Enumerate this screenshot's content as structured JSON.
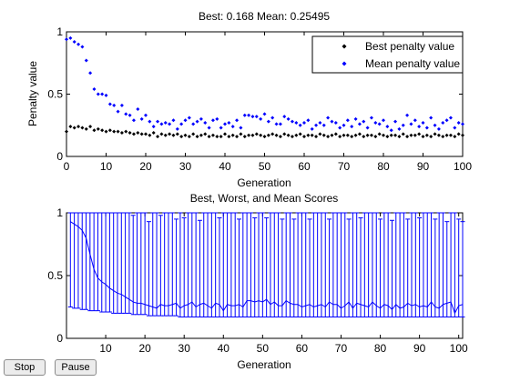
{
  "controls": {
    "stop_label": "Stop",
    "pause_label": "Pause"
  },
  "colors": {
    "best": "#000000",
    "mean": "#0000ff",
    "scores": "#0000ff"
  },
  "chart_data": [
    {
      "type": "scatter",
      "title": "Best: 0.168 Mean: 0.25495",
      "xlabel": "Generation",
      "ylabel": "Penalty value",
      "xlim": [
        0,
        100
      ],
      "ylim": [
        0,
        1
      ],
      "xticks": [
        "0",
        "10",
        "20",
        "30",
        "40",
        "50",
        "60",
        "70",
        "80",
        "90",
        "100"
      ],
      "yticks": [
        "0",
        "0.5",
        "1"
      ],
      "legend_position": "top-right",
      "x": [
        0,
        1,
        2,
        3,
        4,
        5,
        6,
        7,
        8,
        9,
        10,
        11,
        12,
        13,
        14,
        15,
        16,
        17,
        18,
        19,
        20,
        21,
        22,
        23,
        24,
        25,
        26,
        27,
        28,
        29,
        30,
        31,
        32,
        33,
        34,
        35,
        36,
        37,
        38,
        39,
        40,
        41,
        42,
        43,
        44,
        45,
        46,
        47,
        48,
        49,
        50,
        51,
        52,
        53,
        54,
        55,
        56,
        57,
        58,
        59,
        60,
        61,
        62,
        63,
        64,
        65,
        66,
        67,
        68,
        69,
        70,
        71,
        72,
        73,
        74,
        75,
        76,
        77,
        78,
        79,
        80,
        81,
        82,
        83,
        84,
        85,
        86,
        87,
        88,
        89,
        90,
        91,
        92,
        93,
        94,
        95,
        96,
        97,
        98,
        99,
        100
      ],
      "series": [
        {
          "name": "Best penalty value",
          "values": [
            0.2,
            0.24,
            0.23,
            0.24,
            0.23,
            0.22,
            0.24,
            0.21,
            0.22,
            0.21,
            0.2,
            0.21,
            0.2,
            0.2,
            0.19,
            0.2,
            0.19,
            0.18,
            0.19,
            0.18,
            0.18,
            0.17,
            0.19,
            0.16,
            0.18,
            0.17,
            0.18,
            0.17,
            0.18,
            0.16,
            0.17,
            0.16,
            0.18,
            0.16,
            0.17,
            0.18,
            0.16,
            0.17,
            0.16,
            0.16,
            0.18,
            0.16,
            0.17,
            0.16,
            0.18,
            0.16,
            0.17,
            0.17,
            0.18,
            0.17,
            0.16,
            0.17,
            0.18,
            0.17,
            0.16,
            0.18,
            0.17,
            0.16,
            0.17,
            0.18,
            0.16,
            0.17,
            0.17,
            0.16,
            0.18,
            0.17,
            0.16,
            0.17,
            0.18,
            0.16,
            0.17,
            0.17,
            0.16,
            0.17,
            0.18,
            0.16,
            0.17,
            0.17,
            0.16,
            0.18,
            0.17,
            0.16,
            0.17,
            0.17,
            0.16,
            0.18,
            0.16,
            0.17,
            0.17,
            0.18,
            0.16,
            0.17,
            0.16,
            0.18,
            0.17,
            0.16,
            0.17,
            0.17,
            0.16,
            0.18,
            0.17
          ]
        },
        {
          "name": "Mean penalty value",
          "values": [
            0.94,
            0.95,
            0.92,
            0.9,
            0.88,
            0.77,
            0.67,
            0.54,
            0.5,
            0.5,
            0.49,
            0.42,
            0.41,
            0.36,
            0.41,
            0.34,
            0.33,
            0.29,
            0.38,
            0.3,
            0.33,
            0.28,
            0.24,
            0.28,
            0.26,
            0.27,
            0.26,
            0.29,
            0.22,
            0.26,
            0.29,
            0.31,
            0.26,
            0.28,
            0.3,
            0.27,
            0.23,
            0.29,
            0.3,
            0.23,
            0.26,
            0.27,
            0.24,
            0.29,
            0.23,
            0.33,
            0.33,
            0.32,
            0.32,
            0.3,
            0.34,
            0.28,
            0.31,
            0.26,
            0.26,
            0.32,
            0.3,
            0.28,
            0.27,
            0.25,
            0.27,
            0.29,
            0.22,
            0.25,
            0.27,
            0.25,
            0.31,
            0.28,
            0.27,
            0.23,
            0.25,
            0.29,
            0.24,
            0.3,
            0.26,
            0.28,
            0.23,
            0.31,
            0.27,
            0.26,
            0.29,
            0.24,
            0.21,
            0.28,
            0.22,
            0.25,
            0.33,
            0.26,
            0.29,
            0.24,
            0.27,
            0.23,
            0.31,
            0.25,
            0.22,
            0.27,
            0.29,
            0.31,
            0.23,
            0.27,
            0.26
          ]
        }
      ]
    },
    {
      "type": "line",
      "title": "Best, Worst, and Mean Scores",
      "xlabel": "Generation",
      "ylabel": "",
      "xlim": [
        0,
        101
      ],
      "ylim": [
        0,
        1
      ],
      "xticks": [
        "10",
        "20",
        "30",
        "40",
        "50",
        "60",
        "70",
        "80",
        "90",
        "100"
      ],
      "yticks": [
        "0",
        "0.5",
        "1"
      ],
      "x": [
        1,
        2,
        3,
        4,
        5,
        6,
        7,
        8,
        9,
        10,
        11,
        12,
        13,
        14,
        15,
        16,
        17,
        18,
        19,
        20,
        21,
        22,
        23,
        24,
        25,
        26,
        27,
        28,
        29,
        30,
        31,
        32,
        33,
        34,
        35,
        36,
        37,
        38,
        39,
        40,
        41,
        42,
        43,
        44,
        45,
        46,
        47,
        48,
        49,
        50,
        51,
        52,
        53,
        54,
        55,
        56,
        57,
        58,
        59,
        60,
        61,
        62,
        63,
        64,
        65,
        66,
        67,
        68,
        69,
        70,
        71,
        72,
        73,
        74,
        75,
        76,
        77,
        78,
        79,
        80,
        81,
        82,
        83,
        84,
        85,
        86,
        87,
        88,
        89,
        90,
        91,
        92,
        93,
        94,
        95,
        96,
        97,
        98,
        99,
        100,
        101
      ],
      "series": [
        {
          "name": "Mean",
          "values": [
            0.93,
            0.91,
            0.89,
            0.86,
            0.8,
            0.67,
            0.55,
            0.48,
            0.45,
            0.43,
            0.4,
            0.38,
            0.36,
            0.35,
            0.33,
            0.31,
            0.29,
            0.28,
            0.28,
            0.27,
            0.26,
            0.25,
            0.24,
            0.27,
            0.26,
            0.26,
            0.27,
            0.28,
            0.24,
            0.26,
            0.27,
            0.29,
            0.25,
            0.27,
            0.28,
            0.26,
            0.24,
            0.28,
            0.27,
            0.22,
            0.27,
            0.26,
            0.26,
            0.27,
            0.25,
            0.3,
            0.3,
            0.29,
            0.3,
            0.29,
            0.31,
            0.27,
            0.29,
            0.26,
            0.26,
            0.3,
            0.28,
            0.27,
            0.27,
            0.25,
            0.26,
            0.27,
            0.25,
            0.26,
            0.27,
            0.25,
            0.29,
            0.27,
            0.27,
            0.24,
            0.26,
            0.29,
            0.24,
            0.28,
            0.27,
            0.26,
            0.25,
            0.29,
            0.26,
            0.24,
            0.27,
            0.26,
            0.23,
            0.27,
            0.24,
            0.25,
            0.28,
            0.26,
            0.27,
            0.25,
            0.26,
            0.25,
            0.29,
            0.25,
            0.24,
            0.27,
            0.28,
            0.29,
            0.2,
            0.26,
            0.27
          ]
        },
        {
          "name": "Best",
          "values": [
            0.25,
            0.24,
            0.24,
            0.23,
            0.23,
            0.22,
            0.22,
            0.22,
            0.21,
            0.21,
            0.21,
            0.2,
            0.2,
            0.2,
            0.2,
            0.2,
            0.19,
            0.19,
            0.19,
            0.19,
            0.18,
            0.18,
            0.18,
            0.18,
            0.18,
            0.18,
            0.18,
            0.18,
            0.17,
            0.17,
            0.17,
            0.17,
            0.17,
            0.17,
            0.17,
            0.17,
            0.17,
            0.17,
            0.17,
            0.17,
            0.17,
            0.17,
            0.17,
            0.17,
            0.17,
            0.17,
            0.17,
            0.17,
            0.17,
            0.17,
            0.17,
            0.17,
            0.17,
            0.17,
            0.17,
            0.17,
            0.17,
            0.17,
            0.17,
            0.17,
            0.17,
            0.17,
            0.17,
            0.17,
            0.17,
            0.17,
            0.17,
            0.17,
            0.17,
            0.17,
            0.17,
            0.17,
            0.17,
            0.17,
            0.17,
            0.17,
            0.17,
            0.17,
            0.17,
            0.17,
            0.17,
            0.17,
            0.17,
            0.17,
            0.17,
            0.17,
            0.17,
            0.17,
            0.17,
            0.17,
            0.17,
            0.17,
            0.17,
            0.17,
            0.17,
            0.17,
            0.17,
            0.17,
            0.17,
            0.17,
            0.17
          ]
        },
        {
          "name": "Worst",
          "values": [
            1.0,
            1.0,
            1.0,
            1.0,
            1.0,
            1.0,
            1.0,
            1.0,
            1.0,
            1.0,
            1.0,
            1.0,
            1.0,
            1.0,
            1.0,
            1.0,
            0.98,
            1.0,
            1.0,
            1.0,
            0.93,
            1.0,
            1.0,
            0.98,
            1.0,
            1.0,
            1.0,
            0.95,
            1.0,
            0.96,
            1.0,
            1.0,
            1.0,
            0.94,
            1.0,
            1.0,
            1.0,
            1.0,
            0.96,
            1.0,
            1.0,
            1.0,
            1.0,
            0.95,
            1.0,
            1.0,
            1.0,
            0.96,
            1.0,
            1.0,
            0.96,
            1.0,
            1.0,
            1.0,
            0.95,
            1.0,
            1.0,
            0.95,
            1.0,
            1.0,
            1.0,
            0.95,
            1.0,
            1.0,
            1.0,
            1.0,
            0.95,
            1.0,
            1.0,
            1.0,
            1.0,
            0.95,
            1.0,
            1.0,
            0.96,
            1.0,
            1.0,
            1.0,
            1.0,
            0.95,
            1.0,
            1.0,
            0.94,
            1.0,
            1.0,
            1.0,
            0.95,
            1.0,
            1.0,
            0.96,
            1.0,
            1.0,
            1.0,
            0.95,
            1.0,
            1.0,
            0.93,
            1.0,
            1.0,
            0.95,
            0.93
          ]
        }
      ]
    }
  ]
}
